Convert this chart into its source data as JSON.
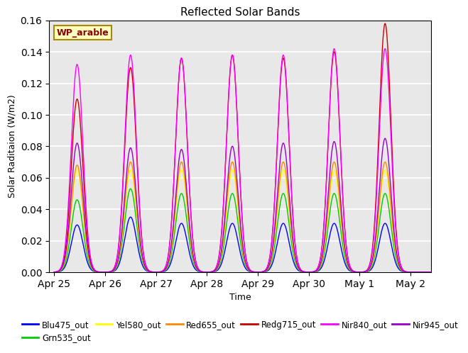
{
  "title": "Reflected Solar Bands",
  "xlabel": "Time",
  "ylabel": "Solar Raditaion (W/m2)",
  "annotation": "WP_arable",
  "ylim": [
    0,
    0.16
  ],
  "background_color": "#e8e8e8",
  "grid_color": "white",
  "series_order": [
    "Blu475_out",
    "Grn535_out",
    "Yel580_out",
    "Red655_out",
    "Redg715_out",
    "Nir840_out",
    "Nir945_out"
  ],
  "series": {
    "Blu475_out": {
      "color": "#0000ff"
    },
    "Grn535_out": {
      "color": "#00cc00"
    },
    "Yel580_out": {
      "color": "#ffff00"
    },
    "Red655_out": {
      "color": "#ff8800"
    },
    "Redg715_out": {
      "color": "#cc0000"
    },
    "Nir840_out": {
      "color": "#ff00ff"
    },
    "Nir945_out": {
      "color": "#9900cc"
    }
  },
  "day_peaks": {
    "Blu475_out": [
      0.03,
      0.035,
      0.031,
      0.031,
      0.031,
      0.031,
      0.031,
      0.0
    ],
    "Grn535_out": [
      0.046,
      0.053,
      0.05,
      0.05,
      0.05,
      0.05,
      0.05,
      0.0
    ],
    "Yel580_out": [
      0.065,
      0.065,
      0.065,
      0.065,
      0.065,
      0.065,
      0.065,
      0.0
    ],
    "Red655_out": [
      0.068,
      0.07,
      0.07,
      0.07,
      0.07,
      0.07,
      0.07,
      0.0
    ],
    "Redg715_out": [
      0.11,
      0.13,
      0.136,
      0.138,
      0.136,
      0.14,
      0.158,
      0.0
    ],
    "Nir840_out": [
      0.132,
      0.138,
      0.136,
      0.138,
      0.138,
      0.142,
      0.142,
      0.0
    ],
    "Nir945_out": [
      0.082,
      0.079,
      0.078,
      0.08,
      0.082,
      0.083,
      0.085,
      0.0
    ]
  },
  "tick_labels": [
    "Apr 25",
    "Apr 26",
    "Apr 27",
    "Apr 28",
    "Apr 29",
    "Apr 30",
    "May 1",
    "May 2"
  ],
  "tick_positions": [
    0,
    1,
    2,
    3,
    4,
    5,
    6,
    7
  ],
  "legend_order": [
    "Blu475_out",
    "Grn535_out",
    "Yel580_out",
    "Red655_out",
    "Redg715_out",
    "Nir840_out",
    "Nir945_out"
  ]
}
